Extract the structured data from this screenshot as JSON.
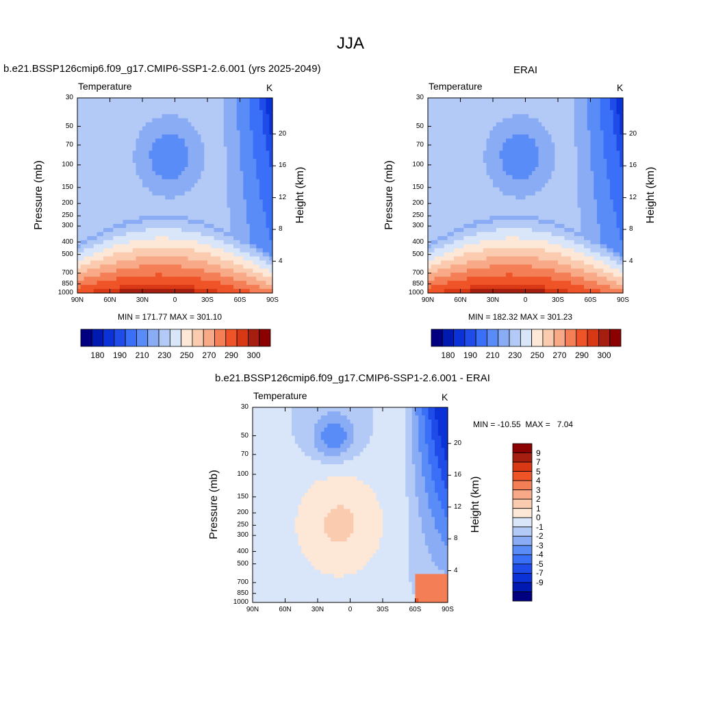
{
  "figure": {
    "title": "JJA"
  },
  "colors": {
    "temp_levels": [
      "#000080",
      "#0019b0",
      "#0a32d7",
      "#1f4ce8",
      "#3a6ff7",
      "#5a8cf7",
      "#89acf5",
      "#b4caf6",
      "#d9e6fa",
      "#fde7d6",
      "#fbcbb0",
      "#f8a987",
      "#f47f56",
      "#ef5429",
      "#d93815",
      "#a51e0f",
      "#8b0000"
    ],
    "diff_levels": [
      "#000080",
      "#0019b0",
      "#0a32d7",
      "#1f4ce8",
      "#3a6ff7",
      "#5a8cf7",
      "#89acf5",
      "#b4caf6",
      "#d9e6fa",
      "#fde7d6",
      "#fbcbb0",
      "#f8a987",
      "#f47f56",
      "#ef5429",
      "#d93815",
      "#a51e0f",
      "#8b0000"
    ]
  },
  "chart_data": [
    {
      "type": "heatmap",
      "panel_title": "b.e21.BSSP126cmip6.f09_g17.CMIP6-SSP1-2.6.001 (yrs 2025-2049)",
      "left_string": "Temperature",
      "units": "K",
      "ylabel": "Pressure (mb)",
      "ylabel_right": "Height (km)",
      "x_ticks": [
        "90N",
        "60N",
        "30N",
        "0",
        "30S",
        "60S",
        "90S"
      ],
      "y_ticks": [
        "30",
        "50",
        "70",
        "100",
        "150",
        "200",
        "250",
        "300",
        "400",
        "500",
        "700",
        "850",
        "1000"
      ],
      "y_right_ticks": [
        "20",
        "16",
        "12",
        "8",
        "4"
      ],
      "stats": "MIN = 171.77  MAX = 301.10",
      "colorbar_labels": [
        "180",
        "190",
        "210",
        "230",
        "250",
        "270",
        "290",
        "300"
      ],
      "min": 171.77,
      "max": 301.1
    },
    {
      "type": "heatmap",
      "panel_title": "ERAI",
      "left_string": "Temperature",
      "units": "K",
      "ylabel": "Pressure (mb)",
      "ylabel_right": "Height (km)",
      "x_ticks": [
        "90N",
        "60N",
        "30N",
        "0",
        "30S",
        "60S",
        "90S"
      ],
      "y_ticks": [
        "30",
        "50",
        "70",
        "100",
        "150",
        "200",
        "250",
        "300",
        "400",
        "500",
        "700",
        "850",
        "1000"
      ],
      "y_right_ticks": [
        "20",
        "16",
        "12",
        "8",
        "4"
      ],
      "stats": "MIN = 182.32  MAX = 301.23",
      "colorbar_labels": [
        "180",
        "190",
        "210",
        "230",
        "250",
        "270",
        "290",
        "300"
      ],
      "min": 182.32,
      "max": 301.23
    },
    {
      "type": "heatmap",
      "panel_title": "b.e21.BSSP126cmip6.f09_g17.CMIP6-SSP1-2.6.001 - ERAI",
      "left_string": "Temperature",
      "units": "K",
      "ylabel": "Pressure (mb)",
      "ylabel_right": "Height (km)",
      "x_ticks": [
        "90N",
        "60N",
        "30N",
        "0",
        "30S",
        "60S",
        "90S"
      ],
      "y_ticks": [
        "30",
        "50",
        "70",
        "100",
        "150",
        "200",
        "250",
        "300",
        "400",
        "500",
        "700",
        "850",
        "1000"
      ],
      "y_right_ticks": [
        "20",
        "16",
        "12",
        "8",
        "4"
      ],
      "stats": "MIN = -10.55  MAX =   7.04",
      "colorbar_labels": [
        "9",
        "7",
        "5",
        "4",
        "3",
        "2",
        "1",
        "0",
        "-1",
        "-2",
        "-3",
        "-4",
        "-5",
        "-7",
        "-9"
      ],
      "min": -10.55,
      "max": 7.04
    }
  ]
}
